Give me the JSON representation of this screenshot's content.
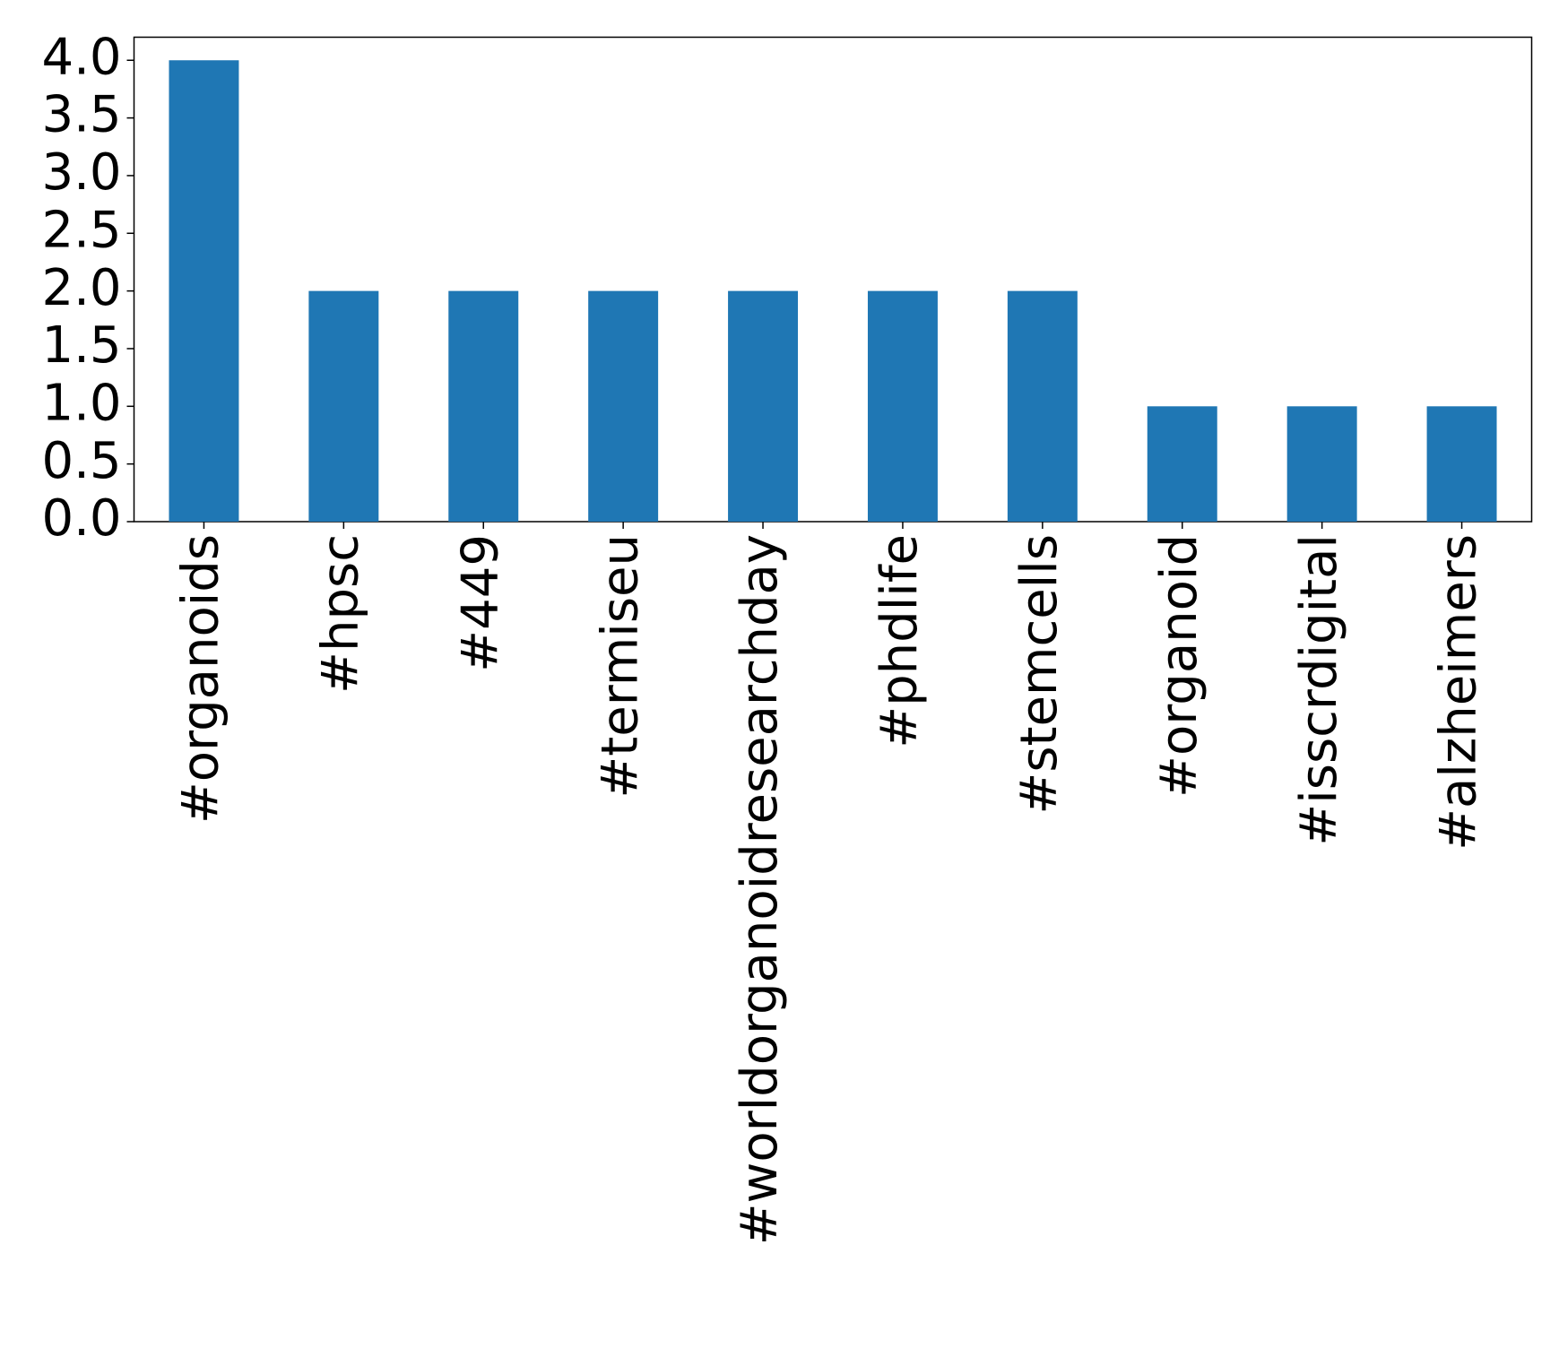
{
  "chart_data": {
    "type": "bar",
    "categories": [
      "#organoids",
      "#hpsc",
      "#449",
      "#termiseu",
      "#worldorganoidresearchday",
      "#phdlife",
      "#stemcells",
      "#organoid",
      "#isscrdigital",
      "#alzheimers"
    ],
    "values": [
      4,
      2,
      2,
      2,
      2,
      2,
      2,
      1,
      1,
      1
    ],
    "color": "#1f77b4",
    "ylim": [
      0,
      4.2
    ],
    "yticks": [
      {
        "value": 0,
        "label": "0.0"
      },
      0.5,
      {
        "value": 1,
        "label": "1.0"
      },
      1.5,
      {
        "value": 2,
        "label": "2.0"
      },
      2.5,
      {
        "value": 3,
        "label": "3.0"
      },
      3.5,
      {
        "value": 4,
        "label": "4.0"
      }
    ],
    "grid": false
  }
}
